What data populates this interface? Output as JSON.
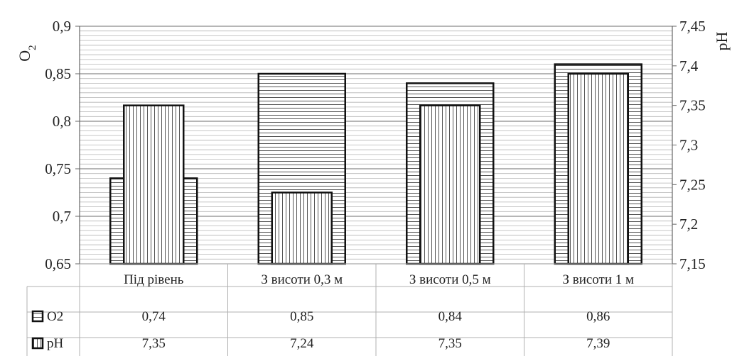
{
  "chart_data": {
    "type": "bar",
    "title": "",
    "categories": [
      "Під рівень",
      "З висоти 0,3 м",
      "З висоти 0,5 м",
      "З висоти 1 м"
    ],
    "series": [
      {
        "name": "O2",
        "axis": "left",
        "values": [
          0.74,
          0.85,
          0.84,
          0.86
        ],
        "value_labels": [
          "0,74",
          "0,85",
          "0,84",
          "0,86"
        ],
        "pattern": "horizontal-stripes"
      },
      {
        "name": "pH",
        "axis": "right",
        "values": [
          7.35,
          7.24,
          7.35,
          7.39
        ],
        "value_labels": [
          "7,35",
          "7,24",
          "7,35",
          "7,39"
        ],
        "pattern": "vertical-stripes"
      }
    ],
    "ylabel": "O2",
    "ylabel_right": "pH",
    "ylim": [
      0.65,
      0.9
    ],
    "ylim_right": [
      7.15,
      7.45
    ],
    "yticks": [
      "0,65",
      "0,7",
      "0,75",
      "0,8",
      "0,85",
      "0,9"
    ],
    "yticks_right": [
      "7,15",
      "7,2",
      "7,25",
      "7,3",
      "7,35",
      "7,4",
      "7,45"
    ],
    "grid": true,
    "legend": "data-table",
    "colors": {
      "line": "#111111",
      "grid": "#b5b5b5",
      "background": "#ffffff"
    }
  }
}
